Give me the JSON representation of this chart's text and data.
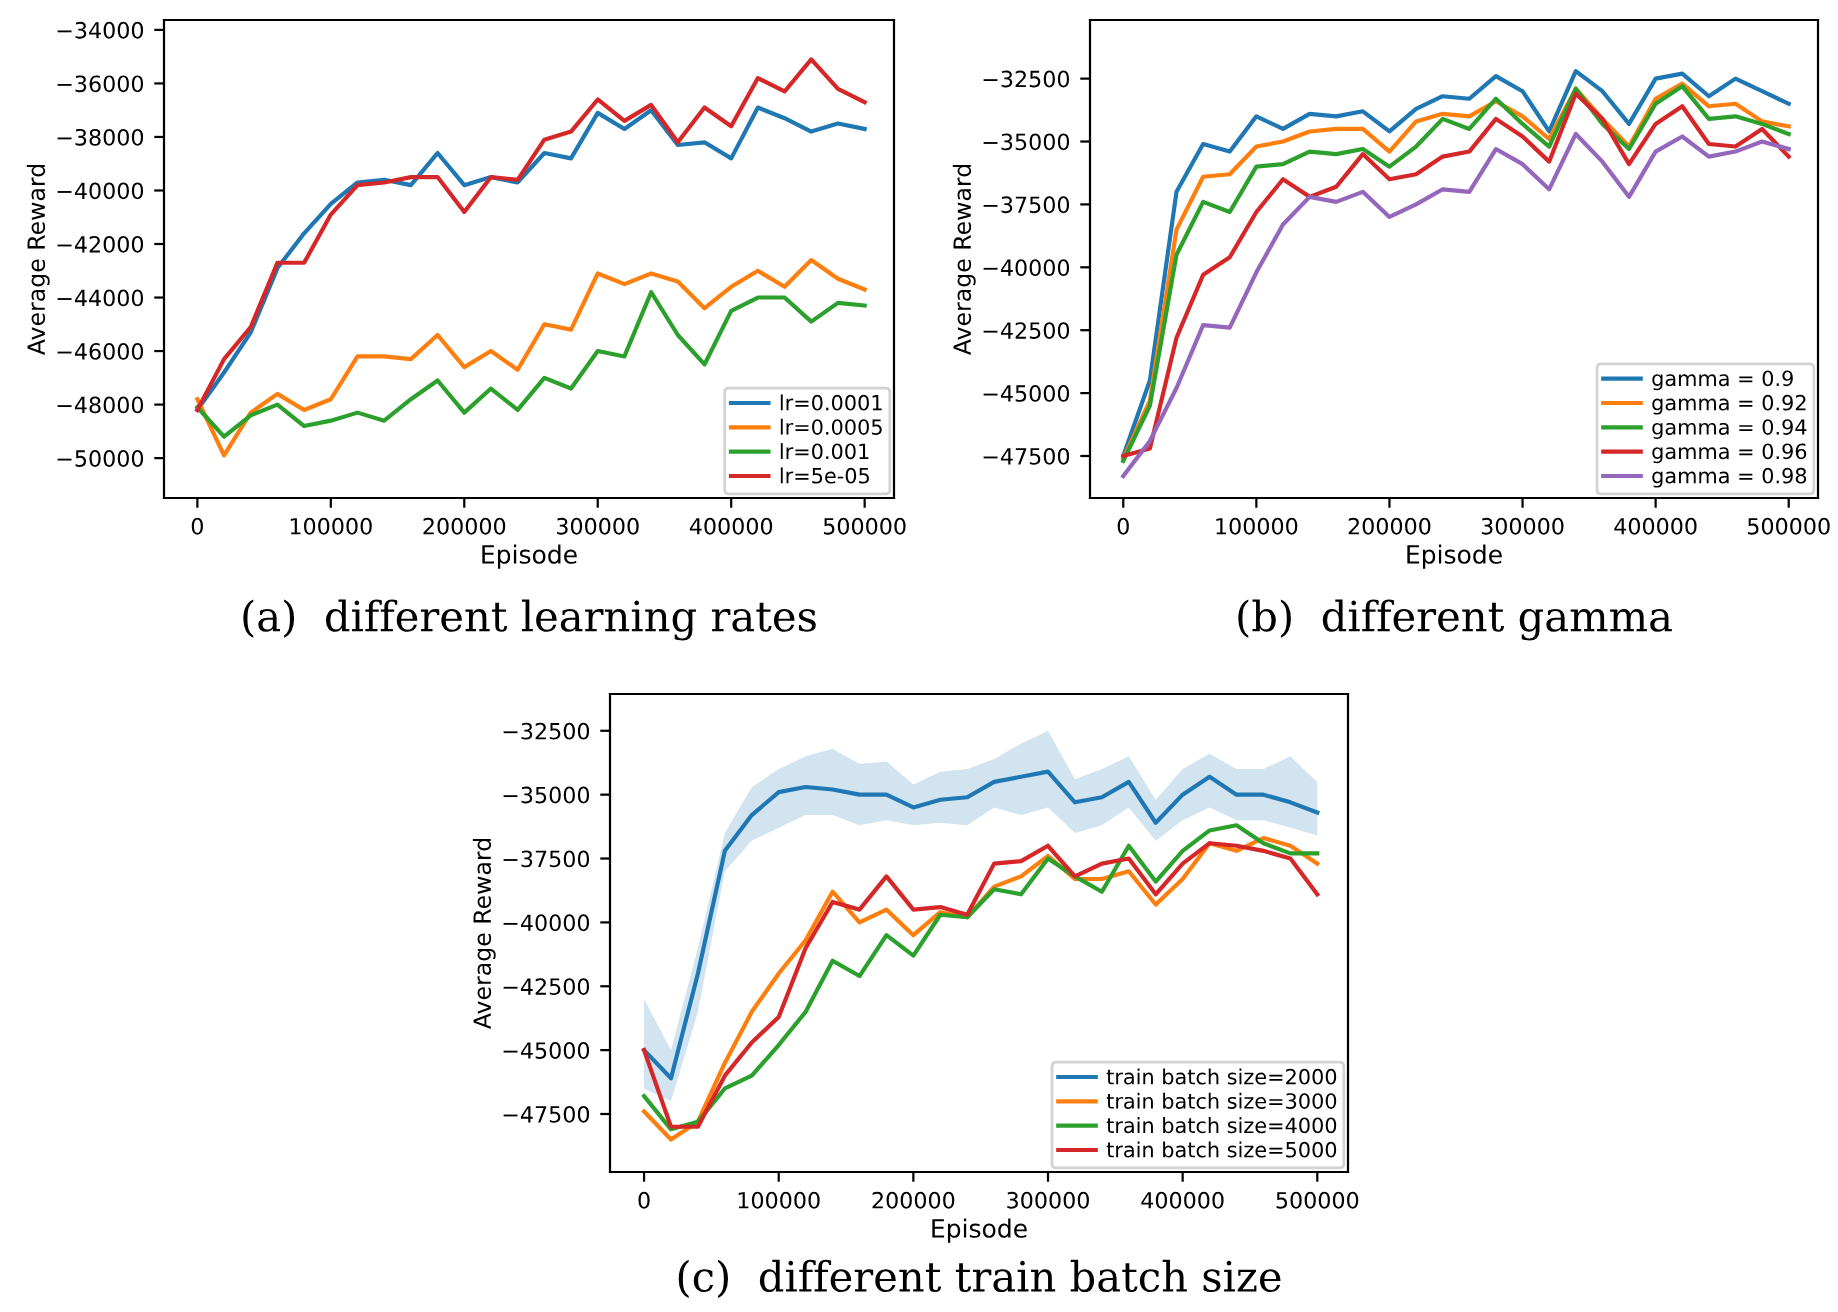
{
  "chart_data": [
    {
      "type": "line",
      "xlabel": "Episode",
      "ylabel": "Average Reward",
      "annotations": [
        "(a)  different learning rates"
      ],
      "legend": "lower right",
      "grid": false,
      "x": [
        0,
        20000,
        40000,
        60000,
        80000,
        100000,
        120000,
        140000,
        160000,
        180000,
        200000,
        220000,
        240000,
        260000,
        280000,
        300000,
        320000,
        340000,
        360000,
        380000,
        400000,
        420000,
        440000,
        460000,
        480000,
        500000
      ],
      "xlim": [
        -25000,
        522000
      ],
      "ylim": [
        -51490,
        -33630
      ],
      "xticks": [
        0,
        100000,
        200000,
        300000,
        400000,
        500000
      ],
      "yticks": [
        -50000,
        -48000,
        -46000,
        -44000,
        -42000,
        -40000,
        -38000,
        -36000,
        -34000
      ],
      "series": [
        {
          "name": "lr=0.0001",
          "color": "#1f77b4",
          "values": [
            -48200,
            -46800,
            -45300,
            -42900,
            -41600,
            -40500,
            -39700,
            -39600,
            -39800,
            -38600,
            -39800,
            -39500,
            -39700,
            -38600,
            -38800,
            -37100,
            -37700,
            -37000,
            -38300,
            -38200,
            -38800,
            -36900,
            -37300,
            -37800,
            -37500,
            -37700
          ]
        },
        {
          "name": "lr=0.0005",
          "color": "#ff7f0e",
          "values": [
            -47800,
            -49900,
            -48300,
            -47600,
            -48200,
            -47800,
            -46200,
            -46200,
            -46300,
            -45400,
            -46600,
            -46000,
            -46700,
            -45000,
            -45200,
            -43100,
            -43500,
            -43100,
            -43400,
            -44400,
            -43600,
            -43000,
            -43600,
            -42600,
            -43300,
            -43700
          ]
        },
        {
          "name": "lr=0.001",
          "color": "#2ca02c",
          "values": [
            -48100,
            -49200,
            -48400,
            -48000,
            -48800,
            -48600,
            -48300,
            -48600,
            -47800,
            -47100,
            -48300,
            -47400,
            -48200,
            -47000,
            -47400,
            -46000,
            -46200,
            -43800,
            -45400,
            -46500,
            -44500,
            -44000,
            -44000,
            -44900,
            -44200,
            -44300
          ]
        },
        {
          "name": "lr=5e-05",
          "color": "#d62728",
          "values": [
            -48200,
            -46300,
            -45100,
            -42700,
            -42700,
            -40900,
            -39800,
            -39700,
            -39500,
            -39500,
            -40800,
            -39500,
            -39600,
            -38100,
            -37800,
            -36600,
            -37400,
            -36800,
            -38200,
            -36900,
            -37600,
            -35800,
            -36300,
            -35100,
            -36200,
            -36700
          ]
        }
      ]
    },
    {
      "type": "line",
      "xlabel": "Episode",
      "ylabel": "Average Reward",
      "annotations": [
        "(b)  different gamma"
      ],
      "legend": "lower right",
      "grid": false,
      "x": [
        0,
        20000,
        40000,
        60000,
        80000,
        100000,
        120000,
        140000,
        160000,
        180000,
        200000,
        220000,
        240000,
        260000,
        280000,
        300000,
        320000,
        340000,
        360000,
        380000,
        400000,
        420000,
        440000,
        460000,
        480000,
        500000
      ],
      "xlim": [
        -25000,
        522000
      ],
      "ylim": [
        -49170,
        -30170
      ],
      "xticks": [
        0,
        100000,
        200000,
        300000,
        400000,
        500000
      ],
      "yticks": [
        -47500,
        -45000,
        -42500,
        -40000,
        -37500,
        -35000,
        -32500
      ],
      "series": [
        {
          "name": "gamma = 0.9",
          "color": "#1f77b4",
          "values": [
            -47500,
            -44500,
            -37000,
            -35100,
            -35400,
            -34000,
            -34500,
            -33900,
            -34000,
            -33800,
            -34600,
            -33700,
            -33200,
            -33300,
            -32400,
            -33000,
            -34600,
            -32200,
            -33000,
            -34300,
            -32500,
            -32300,
            -33200,
            -32500,
            -33000,
            -33500
          ]
        },
        {
          "name": "gamma = 0.92",
          "color": "#ff7f0e",
          "values": [
            -47600,
            -45300,
            -38500,
            -36400,
            -36300,
            -35200,
            -35000,
            -34600,
            -34500,
            -34500,
            -35400,
            -34200,
            -33900,
            -34000,
            -33400,
            -34000,
            -34900,
            -32900,
            -34100,
            -35200,
            -33300,
            -32700,
            -33600,
            -33500,
            -34200,
            -34400
          ]
        },
        {
          "name": "gamma = 0.94",
          "color": "#2ca02c",
          "values": [
            -47700,
            -45500,
            -39500,
            -37400,
            -37800,
            -36000,
            -35900,
            -35400,
            -35500,
            -35300,
            -36000,
            -35200,
            -34100,
            -34500,
            -33300,
            -34300,
            -35200,
            -32900,
            -34300,
            -35300,
            -33500,
            -32800,
            -34100,
            -34000,
            -34300,
            -34700
          ]
        },
        {
          "name": "gamma = 0.96",
          "color": "#d62728",
          "values": [
            -47500,
            -47200,
            -42800,
            -40300,
            -39600,
            -37800,
            -36500,
            -37200,
            -36800,
            -35500,
            -36500,
            -36300,
            -35600,
            -35400,
            -34100,
            -34800,
            -35800,
            -33100,
            -34100,
            -35900,
            -34300,
            -33600,
            -35100,
            -35200,
            -34500,
            -35600
          ]
        },
        {
          "name": "gamma = 0.98",
          "color": "#9467bd",
          "values": [
            -48300,
            -46900,
            -44800,
            -42300,
            -42400,
            -40200,
            -38300,
            -37200,
            -37400,
            -37000,
            -38000,
            -37500,
            -36900,
            -37000,
            -35300,
            -35900,
            -36900,
            -34700,
            -35800,
            -37200,
            -35400,
            -34800,
            -35600,
            -35400,
            -35000,
            -35300
          ]
        }
      ]
    },
    {
      "type": "line",
      "xlabel": "Episode",
      "ylabel": "Average Reward",
      "annotations": [
        "(c)  different train batch size"
      ],
      "legend": "lower right",
      "grid": false,
      "x": [
        0,
        20000,
        40000,
        60000,
        80000,
        100000,
        120000,
        140000,
        160000,
        180000,
        200000,
        220000,
        240000,
        260000,
        280000,
        300000,
        320000,
        340000,
        360000,
        380000,
        400000,
        420000,
        440000,
        460000,
        480000,
        500000
      ],
      "xlim": [
        -25300,
        522800
      ],
      "ylim": [
        -49770,
        -31060
      ],
      "xticks": [
        0,
        100000,
        200000,
        300000,
        400000,
        500000
      ],
      "yticks": [
        -47500,
        -45000,
        -42500,
        -40000,
        -37500,
        -35000,
        -32500
      ],
      "series": [
        {
          "name": "train batch size=2000",
          "color": "#1f77b4",
          "values": [
            -45000,
            -46100,
            -42000,
            -37200,
            -35800,
            -34900,
            -34700,
            -34800,
            -35000,
            -35000,
            -35500,
            -35200,
            -35100,
            -34500,
            -34300,
            -34100,
            -35300,
            -35100,
            -34500,
            -36100,
            -35000,
            -34300,
            -35000,
            -35000,
            -35300,
            -35700
          ],
          "lower": [
            -46500,
            -47000,
            -43500,
            -38000,
            -36800,
            -36300,
            -35800,
            -35800,
            -36200,
            -36000,
            -36200,
            -36100,
            -36200,
            -35500,
            -35800,
            -35500,
            -36500,
            -36200,
            -35500,
            -36800,
            -36000,
            -35500,
            -36000,
            -36000,
            -36300,
            -36600
          ],
          "upper": [
            -43000,
            -45000,
            -41000,
            -36500,
            -34700,
            -34000,
            -33500,
            -33200,
            -33800,
            -33700,
            -34600,
            -34100,
            -34000,
            -33600,
            -33000,
            -32500,
            -34400,
            -34000,
            -33500,
            -35200,
            -34000,
            -33400,
            -34000,
            -34000,
            -33500,
            -34500
          ]
        },
        {
          "name": "train batch size=3000",
          "color": "#ff7f0e",
          "values": [
            -47400,
            -48500,
            -47800,
            -45500,
            -43500,
            -42000,
            -40700,
            -38800,
            -40000,
            -39500,
            -40500,
            -39600,
            -39800,
            -38600,
            -38200,
            -37400,
            -38300,
            -38300,
            -38000,
            -39300,
            -38300,
            -36900,
            -37200,
            -36700,
            -37000,
            -37700
          ]
        },
        {
          "name": "train batch size=4000",
          "color": "#2ca02c",
          "values": [
            -46800,
            -48100,
            -47800,
            -46500,
            -46000,
            -44800,
            -43500,
            -41500,
            -42100,
            -40500,
            -41300,
            -39700,
            -39800,
            -38700,
            -38900,
            -37500,
            -38200,
            -38800,
            -37000,
            -38400,
            -37200,
            -36400,
            -36200,
            -36900,
            -37300,
            -37300
          ]
        },
        {
          "name": "train batch size=5000",
          "color": "#d62728",
          "values": [
            -45000,
            -48000,
            -48000,
            -46000,
            -44700,
            -43700,
            -41000,
            -39200,
            -39500,
            -38200,
            -39500,
            -39400,
            -39700,
            -37700,
            -37600,
            -37000,
            -38200,
            -37700,
            -37500,
            -38900,
            -37700,
            -36900,
            -37000,
            -37200,
            -37500,
            -38900
          ]
        }
      ]
    }
  ]
}
